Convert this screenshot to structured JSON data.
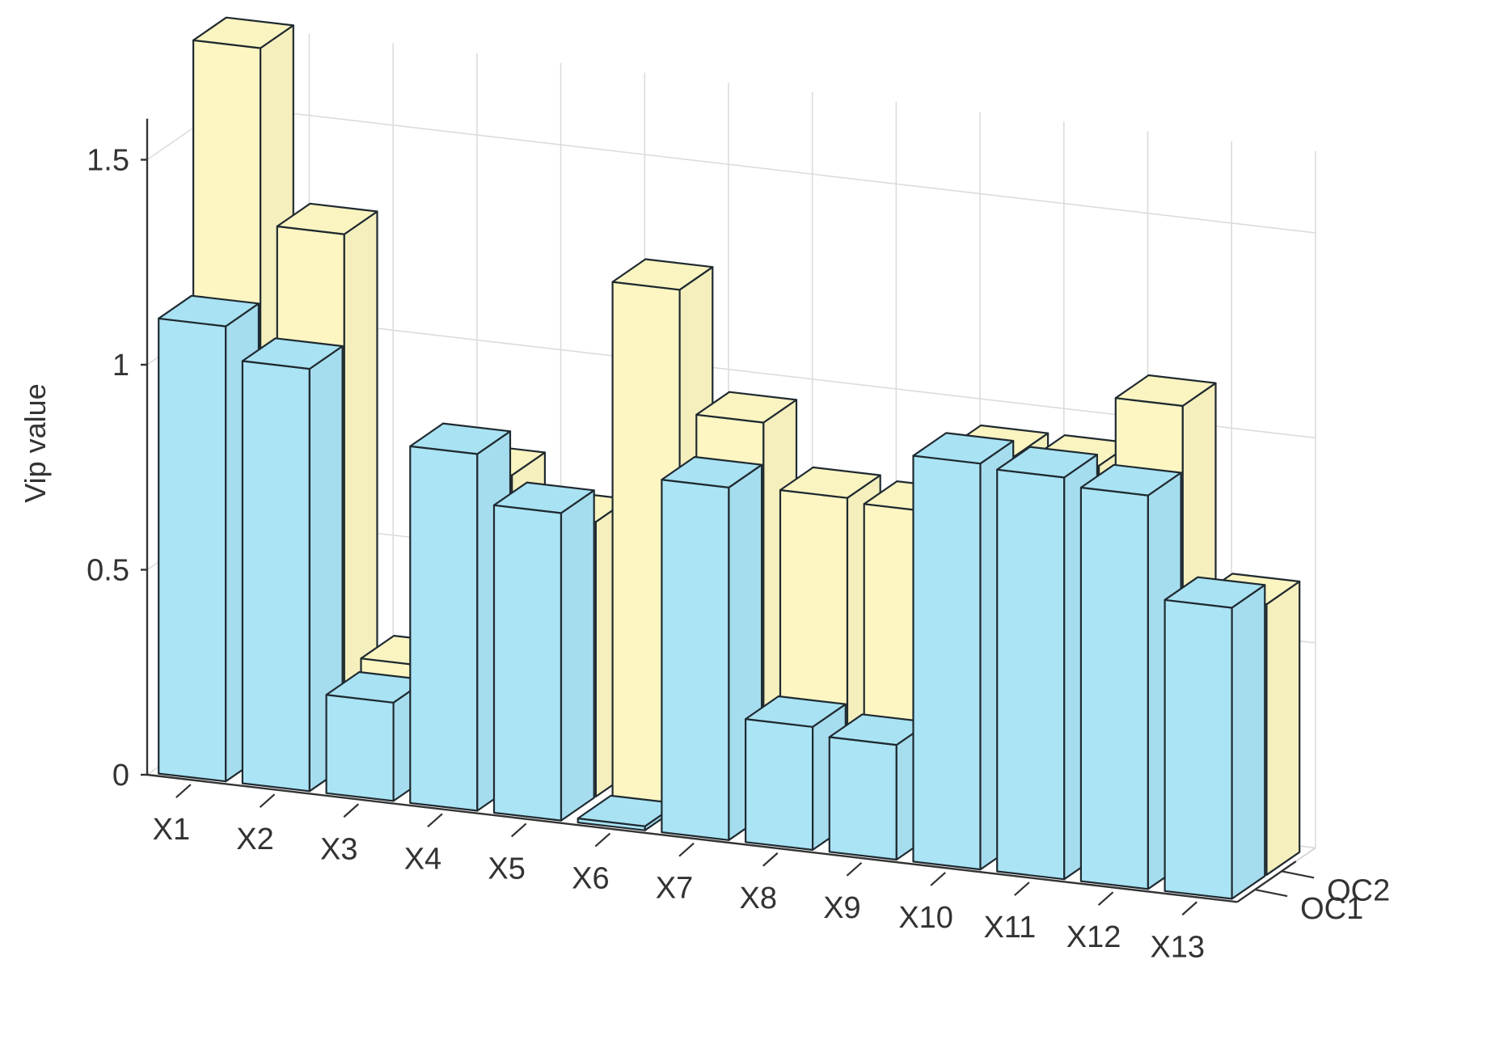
{
  "chart_data": {
    "type": "bar",
    "projection": "3d",
    "title": "",
    "xlabel": "",
    "ylabel": "",
    "zlabel": "Vip value",
    "categories": [
      "X1",
      "X2",
      "X3",
      "X4",
      "X5",
      "X6",
      "X7",
      "X8",
      "X9",
      "X10",
      "X11",
      "X12",
      "X13"
    ],
    "depth_categories": [
      "OC1",
      "OC2"
    ],
    "z_ticks": [
      "0",
      "0.5",
      "1",
      "1.5"
    ],
    "z_tick_values": [
      0,
      0.5,
      1,
      1.5
    ],
    "zlim": [
      0,
      1.7
    ],
    "grid": true,
    "series": [
      {
        "name": "OC1",
        "color": "#abe4f5",
        "values": [
          1.11,
          1.03,
          0.24,
          0.87,
          0.75,
          0.01,
          0.86,
          0.3,
          0.28,
          0.99,
          0.98,
          0.96,
          0.71
        ]
      },
      {
        "name": "OC2",
        "color": "#fdf6c3",
        "values": [
          1.73,
          1.3,
          0.27,
          0.76,
          0.67,
          1.26,
          0.96,
          0.8,
          0.79,
          0.95,
          0.95,
          1.12,
          0.66
        ]
      }
    ]
  }
}
